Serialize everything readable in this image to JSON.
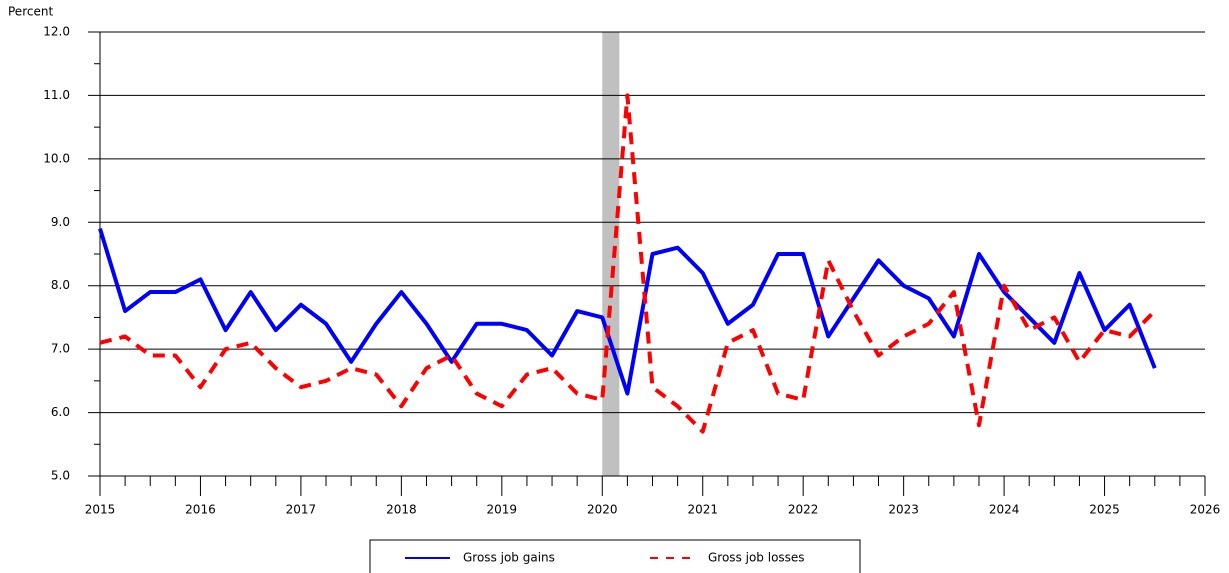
{
  "chart_data": {
    "type": "line",
    "y_label": "Percent",
    "x": [
      2015,
      2015.25,
      2015.5,
      2015.75,
      2016,
      2016.25,
      2016.5,
      2016.75,
      2017,
      2017.25,
      2017.5,
      2017.75,
      2018,
      2018.25,
      2018.5,
      2018.75,
      2019,
      2019.25,
      2019.5,
      2019.75,
      2020,
      2020.25,
      2020.5,
      2020.75,
      2021,
      2021.25,
      2021.5,
      2021.75,
      2022,
      2022.25,
      2022.5,
      2022.75,
      2023,
      2023.25,
      2023.5,
      2023.75,
      2024,
      2024.25,
      2024.5,
      2024.75,
      2025,
      2025.25,
      2025.5
    ],
    "series": [
      {
        "name": "Gross job gains",
        "color": "#0000ff",
        "dashed": false,
        "values": [
          8.9,
          7.6,
          7.9,
          7.9,
          8.1,
          7.3,
          7.9,
          7.3,
          7.7,
          7.4,
          6.8,
          7.4,
          7.9,
          7.4,
          6.8,
          7.4,
          7.4,
          7.3,
          6.9,
          7.6,
          7.5,
          6.3,
          8.5,
          8.6,
          8.2,
          7.4,
          7.7,
          8.5,
          8.5,
          7.2,
          7.8,
          8.4,
          8.0,
          7.8,
          7.2,
          8.5,
          7.9,
          7.5,
          7.1,
          8.2,
          7.3,
          7.7,
          6.7
        ]
      },
      {
        "name": "Gross job losses",
        "color": "#ff0000",
        "dashed": true,
        "values": [
          7.1,
          7.2,
          6.9,
          6.9,
          6.4,
          7.0,
          7.1,
          6.7,
          6.4,
          6.5,
          6.7,
          6.6,
          6.1,
          6.7,
          6.9,
          6.3,
          6.1,
          6.6,
          6.7,
          6.3,
          6.2,
          11.0,
          6.4,
          6.1,
          5.7,
          7.1,
          7.3,
          6.3,
          6.2,
          8.4,
          7.6,
          6.9,
          7.2,
          7.4,
          7.9,
          5.8,
          8.0,
          7.3,
          7.5,
          6.8,
          7.3,
          7.2,
          7.6
        ]
      }
    ],
    "shaded_band": [
      2020,
      2020.17
    ],
    "shade_color": "#c0c0c0",
    "xlim": [
      2015,
      2026
    ],
    "xticks": [
      2015,
      2016,
      2017,
      2018,
      2019,
      2020,
      2021,
      2022,
      2023,
      2024,
      2025,
      2026
    ],
    "ylim": [
      5,
      12
    ],
    "yticks": [
      {
        "value": 5,
        "label": "5.0"
      },
      {
        "value": 6,
        "label": "6.0"
      },
      {
        "value": 7,
        "label": "7.0"
      },
      {
        "value": 8,
        "label": "8.0"
      },
      {
        "value": 9,
        "label": "9.0"
      },
      {
        "value": 10,
        "label": "10.0"
      },
      {
        "value": 11,
        "label": "11.0"
      },
      {
        "value": 12,
        "label": "12.0"
      }
    ],
    "grid": true
  }
}
